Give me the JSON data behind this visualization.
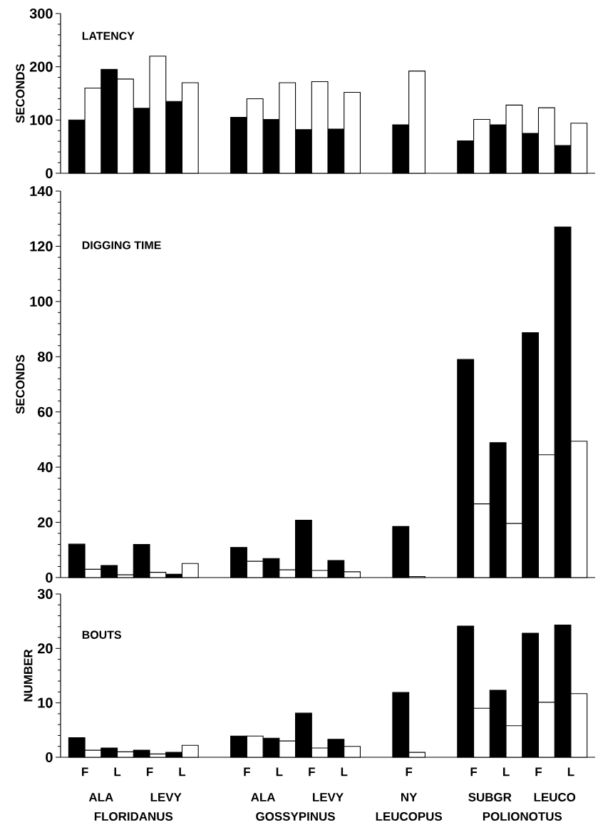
{
  "chart_data": [
    {
      "type": "bar",
      "title": "LATENCY",
      "ylabel": "SECONDS",
      "tick_labels": "y",
      "ylim": [
        0,
        300
      ],
      "yticks": [
        0,
        100,
        200,
        300
      ],
      "categories": [
        null,
        null,
        null,
        null,
        null,
        null,
        null,
        null,
        null,
        null,
        null,
        null,
        null,
        null,
        null,
        null
      ],
      "series": [
        {
          "color": "#000000",
          "values": [
            100,
            195,
            122,
            135,
            null,
            105,
            101,
            82,
            83,
            null,
            91,
            null,
            61,
            91,
            75,
            52
          ]
        },
        {
          "color": "#ffffff",
          "values": [
            160,
            177,
            220,
            170,
            null,
            140,
            170,
            172,
            152,
            null,
            192,
            null,
            101,
            128,
            123,
            94
          ]
        }
      ]
    },
    {
      "type": "bar",
      "title": "DIGGING  TIME",
      "ylabel": "SECONDS",
      "tick_labels": "y",
      "ylim": [
        0,
        140
      ],
      "yticks": [
        0,
        20,
        40,
        60,
        80,
        100,
        120,
        140
      ],
      "categories": [
        null,
        null,
        null,
        null,
        null,
        null,
        null,
        null,
        null,
        null,
        null,
        null,
        null,
        null,
        null,
        null
      ],
      "series": [
        {
          "color": "#000000",
          "values": [
            12.1,
            4.4,
            12.0,
            1.2,
            null,
            10.9,
            6.9,
            20.8,
            6.2,
            null,
            18.5,
            null,
            79,
            48.9,
            88.7,
            127
          ]
        },
        {
          "color": "#ffffff",
          "values": [
            3.0,
            1.0,
            1.9,
            5.1,
            null,
            5.9,
            2.8,
            2.6,
            2.1,
            null,
            0.4,
            null,
            26.7,
            19.6,
            44.5,
            49.4
          ]
        }
      ]
    },
    {
      "type": "bar",
      "title": "BOUTS",
      "ylabel": "NUMBER",
      "ylim": [
        0,
        30
      ],
      "yticks": [
        0,
        10,
        20,
        30
      ],
      "categories": [
        "F",
        "L",
        "F",
        "L",
        null,
        "F",
        "L",
        "F",
        "L",
        null,
        "F",
        null,
        "F",
        "L",
        "F",
        "L"
      ],
      "series": [
        {
          "color": "#000000",
          "values": [
            3.6,
            1.7,
            1.3,
            0.9,
            null,
            3.9,
            3.5,
            8.1,
            3.3,
            null,
            11.9,
            null,
            24.1,
            12.3,
            22.8,
            24.3
          ]
        },
        {
          "color": "#ffffff",
          "values": [
            1.3,
            1.0,
            0.6,
            2.2,
            null,
            3.9,
            3.0,
            1.7,
            2.0,
            null,
            0.9,
            null,
            9.0,
            5.8,
            10.1,
            11.7
          ]
        }
      ],
      "annotations": [
        "ALA",
        "LEVY",
        "ALA",
        "LEVY",
        "NY",
        "SUBGR",
        "LEUCO",
        "FLORIDANUS",
        "GOSSYPINUS",
        "LEUCOPUS",
        "POLIONOTUS"
      ]
    }
  ]
}
